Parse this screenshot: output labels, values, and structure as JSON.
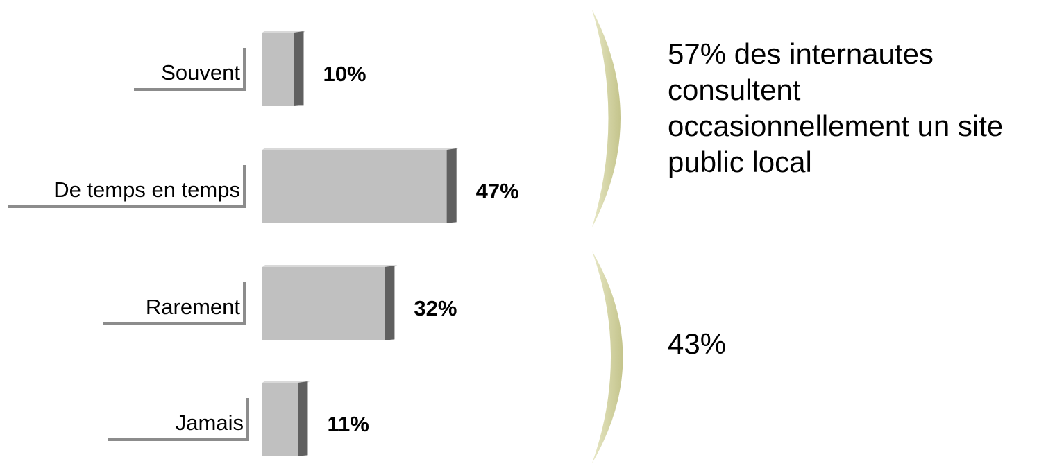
{
  "chart_data": {
    "type": "bar",
    "orientation": "horizontal",
    "categories": [
      "Souvent",
      "De temps en temps",
      "Rarement",
      "Jamais"
    ],
    "values": [
      10,
      47,
      32,
      11
    ],
    "value_labels": [
      "10%",
      "47%",
      "32%",
      "11%"
    ],
    "unit": "%",
    "title": "",
    "xlabel": "",
    "ylabel": "",
    "xlim": [
      0,
      100
    ],
    "grid": false,
    "legend": "none",
    "groups": [
      {
        "categories": [
          "Souvent",
          "De temps en temps"
        ],
        "text": "57% des internautes consultent occasionnellement un site public local"
      },
      {
        "categories": [
          "Rarement",
          "Jamais"
        ],
        "text": "43%"
      }
    ]
  },
  "colors": {
    "bar_fill": "#c0c0c0",
    "bar_edge": "#606060",
    "bar_top": "#d9d9d9",
    "label_line": "#8c8c8c",
    "bracket_light": "#e8e8c8",
    "bracket_dark": "#c4c48c"
  }
}
